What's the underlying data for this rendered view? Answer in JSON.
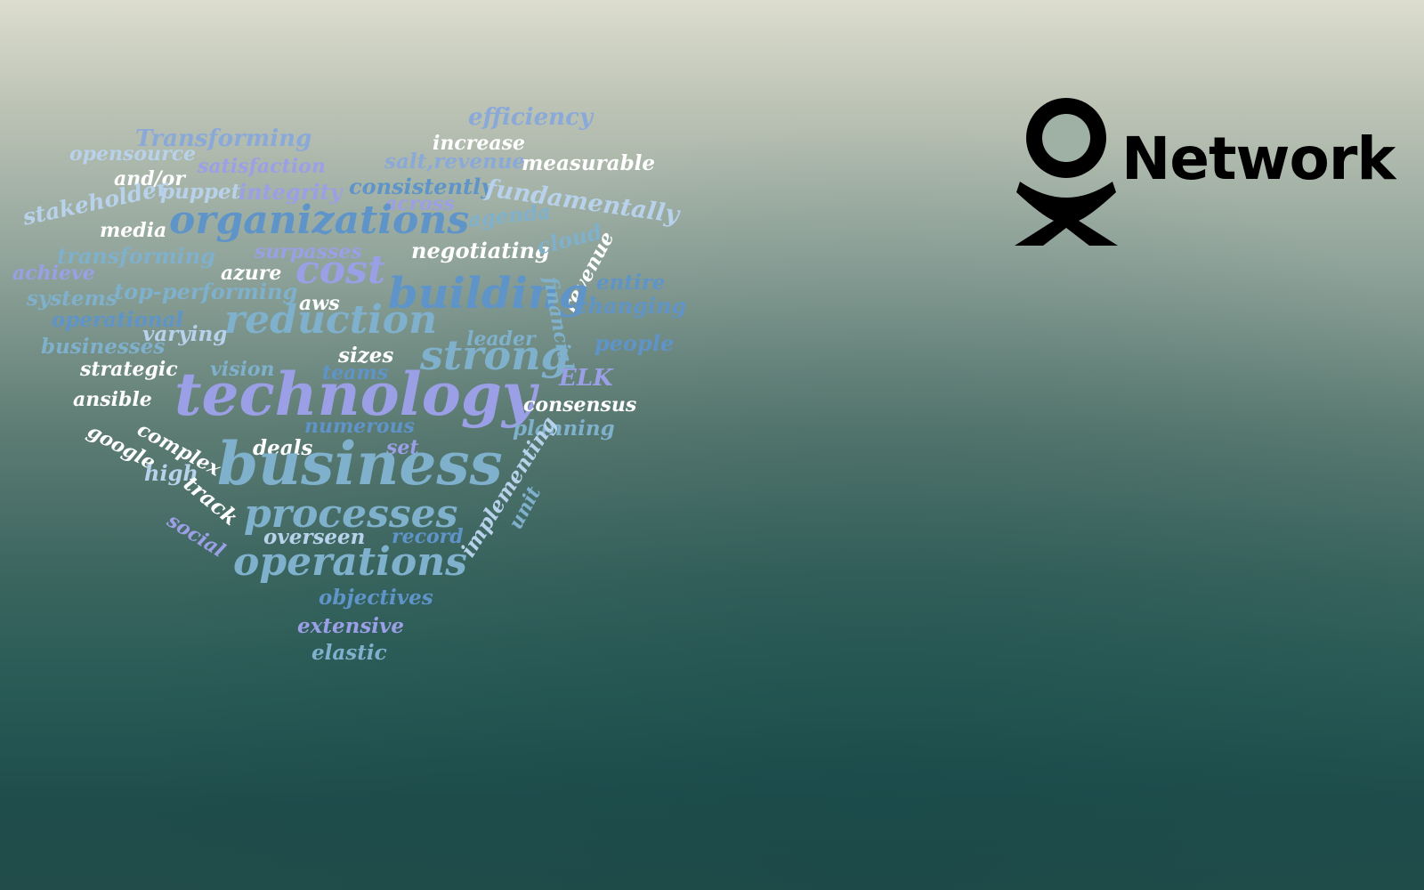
{
  "background": {
    "top": "#dcddce",
    "bottom": "#1f4d4c"
  },
  "logo": {
    "text": "Network",
    "color": "#000000"
  },
  "word_cloud": {
    "shape": "heart",
    "words": [
      {
        "text": "efficiency"
      },
      {
        "text": "Transforming"
      },
      {
        "text": "increase"
      },
      {
        "text": "opensource"
      },
      {
        "text": "satisfaction"
      },
      {
        "text": "salt,revenue"
      },
      {
        "text": "measurable"
      },
      {
        "text": "and/or"
      },
      {
        "text": "puppet"
      },
      {
        "text": "integrity"
      },
      {
        "text": "consistently"
      },
      {
        "text": "fundamentally"
      },
      {
        "text": "stakeholder"
      },
      {
        "text": "across"
      },
      {
        "text": "organizations"
      },
      {
        "text": "media"
      },
      {
        "text": "agenda"
      },
      {
        "text": "transforming"
      },
      {
        "text": "surpasses"
      },
      {
        "text": "negotiating"
      },
      {
        "text": "cloud"
      },
      {
        "text": "achieve"
      },
      {
        "text": "azure"
      },
      {
        "text": "cost"
      },
      {
        "text": "revenue"
      },
      {
        "text": "systems"
      },
      {
        "text": "top-performing"
      },
      {
        "text": "building"
      },
      {
        "text": "financial"
      },
      {
        "text": "entire"
      },
      {
        "text": "aws"
      },
      {
        "text": "changing"
      },
      {
        "text": "operational"
      },
      {
        "text": "reduction"
      },
      {
        "text": "varying"
      },
      {
        "text": "businesses"
      },
      {
        "text": "leader"
      },
      {
        "text": "people"
      },
      {
        "text": "sizes"
      },
      {
        "text": "strong"
      },
      {
        "text": "strategic"
      },
      {
        "text": "vision"
      },
      {
        "text": "teams"
      },
      {
        "text": "ELK"
      },
      {
        "text": "technology"
      },
      {
        "text": "ansible"
      },
      {
        "text": "consensus"
      },
      {
        "text": "google"
      },
      {
        "text": "complex"
      },
      {
        "text": "numerous"
      },
      {
        "text": "planning"
      },
      {
        "text": "deals"
      },
      {
        "text": "set"
      },
      {
        "text": "business"
      },
      {
        "text": "high"
      },
      {
        "text": "track"
      },
      {
        "text": "implementing"
      },
      {
        "text": "unit"
      },
      {
        "text": "processes"
      },
      {
        "text": "social"
      },
      {
        "text": "overseen"
      },
      {
        "text": "record"
      },
      {
        "text": "operations"
      },
      {
        "text": "objectives"
      },
      {
        "text": "extensive"
      },
      {
        "text": "elastic"
      }
    ]
  }
}
